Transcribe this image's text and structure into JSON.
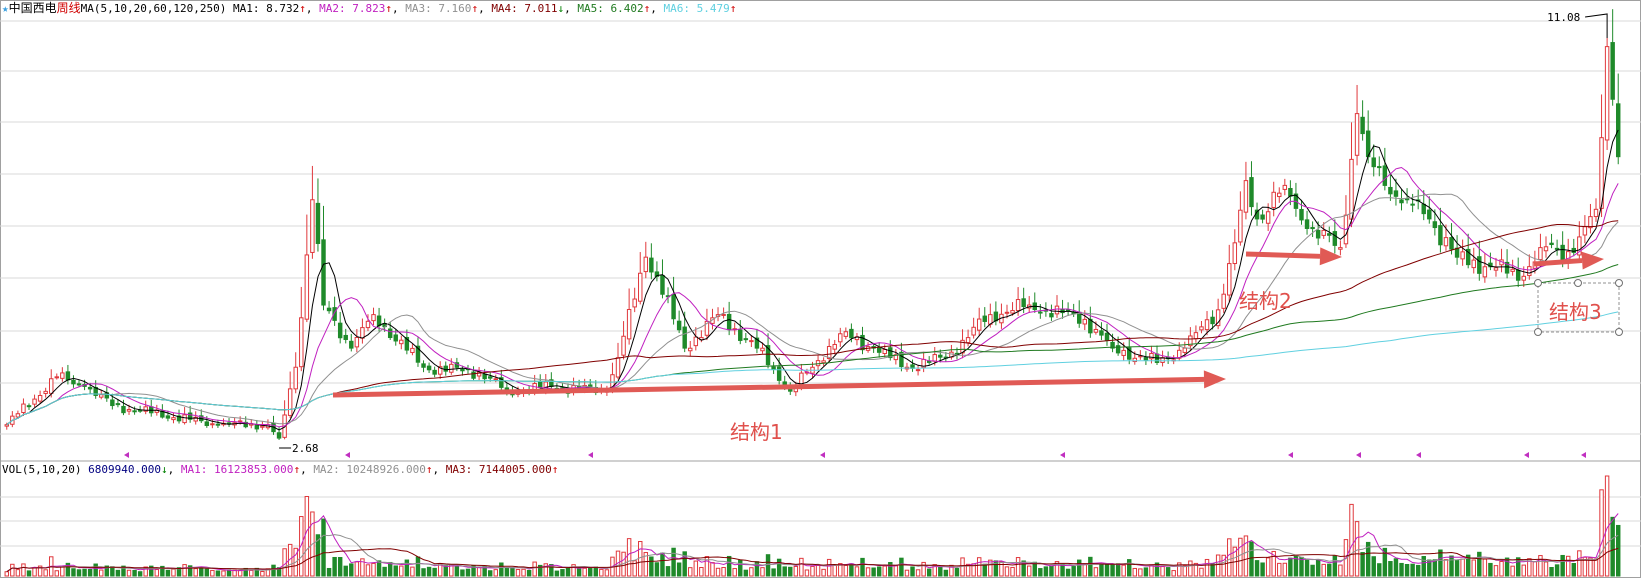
{
  "header": {
    "stock_name": "中国西电",
    "period": "周线",
    "ma_params": "MA(5,10,20,60,120,250)",
    "ma": [
      {
        "label": "MA1: 8.732",
        "dir": "↑",
        "color": "#000000"
      },
      {
        "label": "MA2: 7.823",
        "dir": "↑",
        "color": "#c020c0"
      },
      {
        "label": "MA3: 7.160",
        "dir": "↑",
        "color": "#909090"
      },
      {
        "label": "MA4: 7.011",
        "dir": "↓",
        "color": "#800000"
      },
      {
        "label": "MA5: 6.402",
        "dir": "↑",
        "color": "#207a20"
      },
      {
        "label": "MA6: 5.479",
        "dir": "↑",
        "color": "#60d0e0"
      }
    ]
  },
  "vol_header": {
    "params": "VOL(5,10,20)",
    "value": "6809940.000",
    "value_dir": "↓",
    "ma": [
      {
        "label": "MA1: 16123853.000",
        "dir": "↑",
        "color": "#c020c0"
      },
      {
        "label": "MA2: 10248926.000",
        "dir": "↑",
        "color": "#909090"
      },
      {
        "label": "MA3: 7144005.000",
        "dir": "↑",
        "color": "#800000"
      }
    ]
  },
  "chart_data": {
    "type": "candlestick",
    "period": "weekly",
    "ylim": [
      2.68,
      11.08
    ],
    "high_label": "11.08",
    "low_label": "2.68",
    "approx_close_anchors": {
      "week": [
        0,
        9,
        14,
        19,
        38,
        47,
        49,
        52,
        55,
        57,
        62,
        66,
        75,
        85,
        90,
        98,
        108,
        110,
        115,
        117,
        122,
        128,
        135,
        141,
        145,
        150,
        156,
        162,
        169,
        177,
        184,
        194,
        199,
        207,
        212,
        218,
        221,
        223,
        225,
        230,
        234,
        240,
        243,
        245,
        248,
        252,
        256,
        261,
        267,
        273,
        276,
        282,
        286,
        288,
        289,
        290
      ],
      "close": [
        3.0,
        4.0,
        3.8,
        3.4,
        3.0,
        3.0,
        2.72,
        4.2,
        7.7,
        5.5,
        4.6,
        5.3,
        4.2,
        4.1,
        3.7,
        3.8,
        3.7,
        4.4,
        6.5,
        6.1,
        4.6,
        5.3,
        4.6,
        3.7,
        4.2,
        4.9,
        4.6,
        4.2,
        4.4,
        5.3,
        5.5,
        5.2,
        4.6,
        4.3,
        4.6,
        5.4,
        6.8,
        8.1,
        7.3,
        8.0,
        7.1,
        6.7,
        9.5,
        8.6,
        8.0,
        7.7,
        7.3,
        6.5,
        6.3,
        6.1,
        6.7,
        6.6,
        7.5,
        10.9,
        9.8,
        8.6
      ]
    },
    "moving_averages": [
      5,
      10,
      20,
      60,
      120,
      250
    ],
    "colors": {
      "up": "#e0383c",
      "down": "#1f8a2a",
      "annotation": "#e05a55",
      "marker": "#c030c0",
      "grid": "#d8d8d8"
    }
  },
  "annotations": {
    "labels": [
      "结构1",
      "结构2",
      "结构3"
    ]
  }
}
